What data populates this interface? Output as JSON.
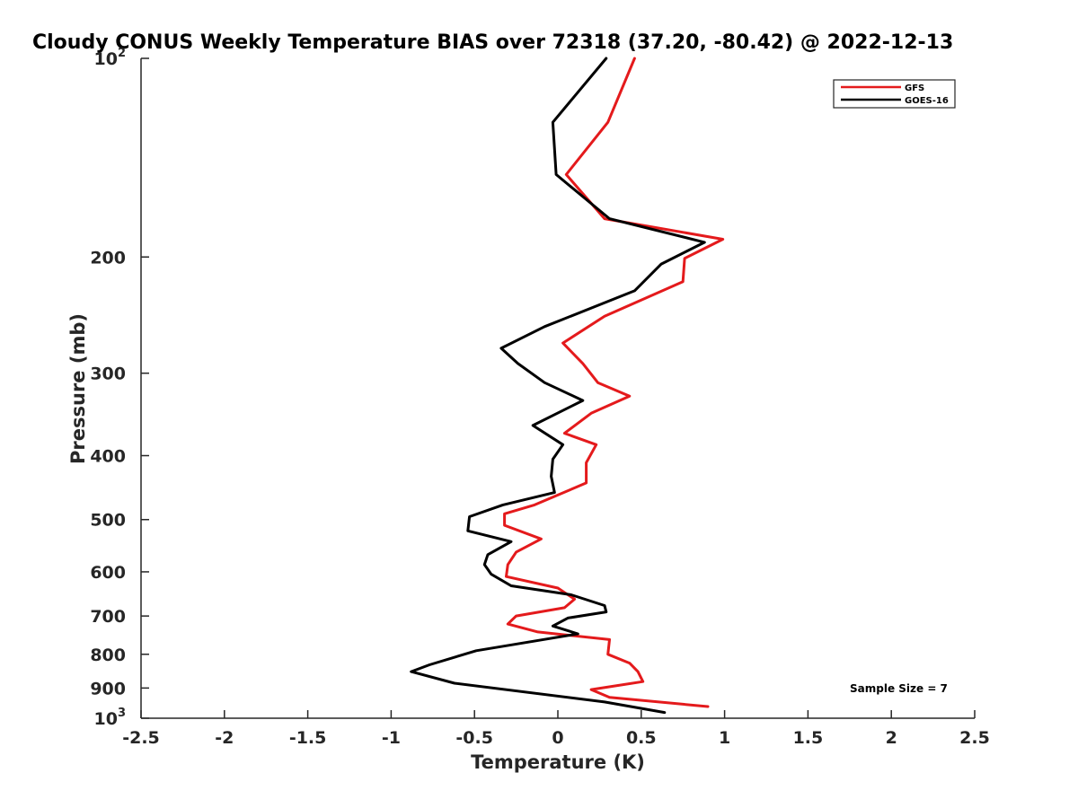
{
  "chart_data": {
    "type": "line",
    "title": "Cloudy CONUS Weekly Temperature BIAS over 72318 (37.20, -80.42) @ 2022-12-13",
    "xlabel": "Temperature (K)",
    "ylabel": "Pressure (mb)",
    "xlim": [
      -2.5,
      2.5
    ],
    "ylim": [
      100,
      1000
    ],
    "y_scale": "log",
    "y_reversed": true,
    "grid": false,
    "legend_position": "top-right",
    "x_ticks": [
      -2.5,
      -2,
      -1.5,
      -1,
      -0.5,
      0,
      0.5,
      1,
      1.5,
      2,
      2.5
    ],
    "x_tick_labels": [
      "-2.5",
      "-2",
      "-1.5",
      "-1",
      "-0.5",
      "0",
      "0.5",
      "1",
      "1.5",
      "2",
      "2.5"
    ],
    "y_ticks": [
      {
        "value": 100,
        "label": "10",
        "sup": "2"
      },
      {
        "value": 200,
        "label": "200",
        "sup": ""
      },
      {
        "value": 300,
        "label": "300",
        "sup": ""
      },
      {
        "value": 400,
        "label": "400",
        "sup": ""
      },
      {
        "value": 500,
        "label": "500",
        "sup": ""
      },
      {
        "value": 600,
        "label": "600",
        "sup": ""
      },
      {
        "value": 700,
        "label": "700",
        "sup": ""
      },
      {
        "value": 800,
        "label": "800",
        "sup": ""
      },
      {
        "value": 900,
        "label": "900",
        "sup": ""
      },
      {
        "value": 1000,
        "label": "10",
        "sup": "3"
      }
    ],
    "series": [
      {
        "name": "GFS",
        "color": "#e41a1c",
        "points": [
          [
            0.46,
            100
          ],
          [
            0.3,
            125
          ],
          [
            0.05,
            150
          ],
          [
            0.28,
            175
          ],
          [
            0.99,
            188
          ],
          [
            0.76,
            201
          ],
          [
            0.75,
            218
          ],
          [
            0.28,
            246
          ],
          [
            0.03,
            270
          ],
          [
            0.15,
            290
          ],
          [
            0.24,
            310
          ],
          [
            0.43,
            325
          ],
          [
            0.2,
            345
          ],
          [
            0.04,
            370
          ],
          [
            0.23,
            385
          ],
          [
            0.17,
            410
          ],
          [
            0.17,
            440
          ],
          [
            -0.14,
            475
          ],
          [
            -0.32,
            490
          ],
          [
            -0.32,
            510
          ],
          [
            -0.1,
            535
          ],
          [
            -0.25,
            560
          ],
          [
            -0.3,
            585
          ],
          [
            -0.31,
            610
          ],
          [
            0.0,
            635
          ],
          [
            0.1,
            660
          ],
          [
            0.04,
            680
          ],
          [
            -0.25,
            700
          ],
          [
            -0.3,
            720
          ],
          [
            -0.12,
            740
          ],
          [
            0.31,
            760
          ],
          [
            0.3,
            800
          ],
          [
            0.43,
            825
          ],
          [
            0.48,
            850
          ],
          [
            0.51,
            880
          ],
          [
            0.2,
            905
          ],
          [
            0.31,
            930
          ],
          [
            0.9,
            960
          ]
        ]
      },
      {
        "name": "GOES-16",
        "color": "#000000",
        "points": [
          [
            0.29,
            100
          ],
          [
            -0.03,
            125
          ],
          [
            -0.01,
            150
          ],
          [
            0.31,
            175
          ],
          [
            0.88,
            190
          ],
          [
            0.62,
            205
          ],
          [
            0.46,
            225
          ],
          [
            -0.08,
            255
          ],
          [
            -0.34,
            275
          ],
          [
            -0.24,
            290
          ],
          [
            -0.08,
            310
          ],
          [
            0.15,
            330
          ],
          [
            -0.15,
            360
          ],
          [
            0.03,
            385
          ],
          [
            -0.03,
            405
          ],
          [
            -0.04,
            430
          ],
          [
            -0.02,
            455
          ],
          [
            -0.33,
            475
          ],
          [
            -0.53,
            495
          ],
          [
            -0.54,
            520
          ],
          [
            -0.28,
            540
          ],
          [
            -0.42,
            565
          ],
          [
            -0.44,
            585
          ],
          [
            -0.4,
            605
          ],
          [
            -0.28,
            630
          ],
          [
            0.08,
            650
          ],
          [
            0.28,
            675
          ],
          [
            0.29,
            690
          ],
          [
            0.06,
            705
          ],
          [
            -0.03,
            725
          ],
          [
            0.12,
            745
          ],
          [
            -0.49,
            790
          ],
          [
            -0.77,
            830
          ],
          [
            -0.88,
            850
          ],
          [
            -0.62,
            885
          ],
          [
            0.28,
            945
          ],
          [
            0.64,
            980
          ]
        ]
      }
    ],
    "annotation": "Sample Size = 7"
  }
}
